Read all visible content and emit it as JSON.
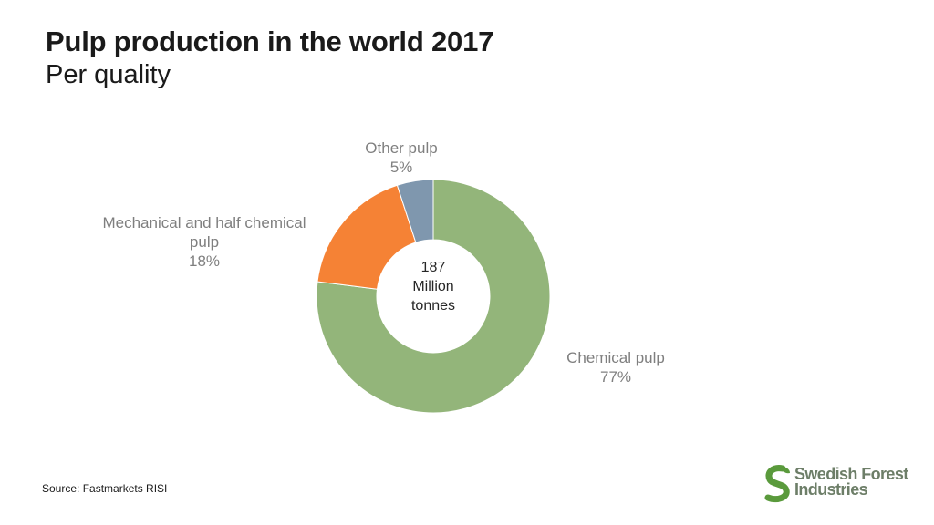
{
  "title": "Pulp production in the world 2017",
  "subtitle": "Per quality",
  "source": "Source: Fastmarkets RISI",
  "logo": {
    "line1": "Swedish Forest",
    "line2": "Industries"
  },
  "colors": {
    "chemical": "#93b57a",
    "mechanical": "#f58235",
    "other": "#7f97ae",
    "label": "#7f7f7f",
    "logo": "#6d7e68"
  },
  "chart_data": {
    "type": "pie",
    "variant": "donut",
    "center_label": [
      "187",
      "Million",
      "tonnes"
    ],
    "slices": [
      {
        "label": [
          "Chemical pulp"
        ],
        "value": 77,
        "value_label": "77%",
        "color": "#93b57a"
      },
      {
        "label": [
          "Mechanical and half chemical",
          "pulp"
        ],
        "value": 18,
        "value_label": "18%",
        "color": "#f58235"
      },
      {
        "label": [
          "Other pulp"
        ],
        "value": 5,
        "value_label": "5%",
        "color": "#7f97ae"
      }
    ]
  }
}
